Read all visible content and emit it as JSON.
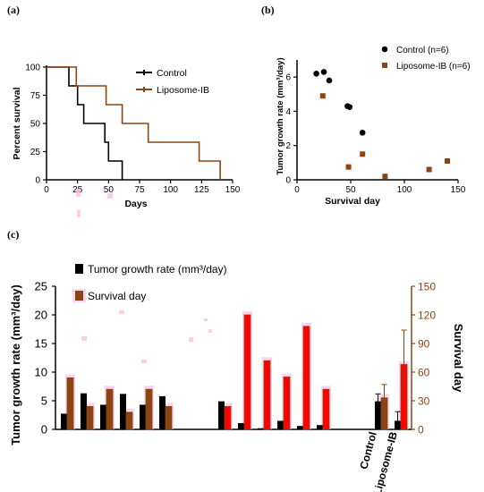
{
  "colors": {
    "control": "#000000",
    "liposome": "#8B4513",
    "liposome_bar": "#FF0000",
    "liposome_bar_edge": "#8B4513",
    "highlight": "#FFB6E1"
  },
  "chart_data": [
    {
      "panel": "(a)",
      "type": "line",
      "step": true,
      "xlabel": "Days",
      "ylabel": "Percent survival",
      "xlim": [
        0,
        150
      ],
      "ylim": [
        0,
        100
      ],
      "xticks": [
        "0",
        "25",
        "50",
        "75",
        "100",
        "125",
        "150"
      ],
      "yticks": [
        "0",
        "25",
        "50",
        "75",
        "100"
      ],
      "legend_position": "top-right",
      "series": [
        {
          "name": "Control",
          "color": "#000000",
          "x": [
            0,
            18,
            18,
            25,
            25,
            30,
            30,
            47,
            47,
            50,
            50,
            61,
            61
          ],
          "y": [
            100,
            100,
            83.3,
            83.3,
            66.7,
            66.7,
            50,
            50,
            33.3,
            33.3,
            16.7,
            16.7,
            0
          ]
        },
        {
          "name": "Liposome-IB",
          "color": "#8B4513",
          "x": [
            0,
            24,
            24,
            48,
            48,
            61,
            61,
            82,
            82,
            123,
            123,
            140,
            140
          ],
          "y": [
            100,
            100,
            83.3,
            83.3,
            66.7,
            66.7,
            50,
            50,
            33.3,
            33.3,
            16.7,
            16.7,
            0
          ]
        }
      ]
    },
    {
      "panel": "(b)",
      "type": "scatter",
      "xlabel": "Survival day",
      "ylabel": "Tumor growth rate (mm³/day)",
      "xlim": [
        0,
        150
      ],
      "ylim": [
        0,
        7
      ],
      "xticks": [
        "0",
        "50",
        "100",
        "150"
      ],
      "yticks": [
        "0",
        "2",
        "4",
        "6"
      ],
      "legend_position": "top-right",
      "series": [
        {
          "name": "Control (n=6)",
          "marker": "circle",
          "color": "#000000",
          "x": [
            18,
            25,
            30,
            47,
            49,
            61
          ],
          "y": [
            6.2,
            6.3,
            5.8,
            4.3,
            4.25,
            2.75
          ]
        },
        {
          "name": "Liposome-IB (n=6)",
          "marker": "square",
          "color": "#8B4513",
          "x": [
            24,
            48,
            61,
            82,
            123,
            140
          ],
          "y": [
            4.9,
            0.75,
            1.5,
            0.2,
            0.6,
            1.1
          ]
        }
      ]
    },
    {
      "panel": "(c)",
      "type": "bar",
      "ylabel": "Tumor growth rate (mm³/day)",
      "ylabel_right": "Survival day",
      "ylim": [
        0,
        25
      ],
      "ylim_right": [
        0,
        150
      ],
      "yticks": [
        "0",
        "5",
        "10",
        "15",
        "20",
        "25"
      ],
      "yticks_right": [
        "0",
        "30",
        "60",
        "90",
        "120",
        "150"
      ],
      "categories": [
        "Control",
        "Liposome-IB"
      ],
      "legend": [
        "Tumor growth rate (mm³/day)",
        "Survival day"
      ],
      "series": [
        {
          "name": "Tumor growth rate (mm³/day)",
          "axis": "left",
          "color": "#000000",
          "control_values": [
            2.75,
            6.3,
            4.3,
            6.2,
            4.3,
            5.8
          ],
          "liposome_values": [
            4.9,
            1.1,
            0.2,
            1.5,
            0.6,
            0.75
          ],
          "mean_values": [
            4.9,
            1.5
          ],
          "error": [
            1.3,
            1.6
          ]
        },
        {
          "name": "Survival day",
          "axis": "right",
          "color": "#8B4513",
          "control_values": [
            54,
            24,
            42,
            18,
            42,
            24
          ],
          "liposome_values": [
            24,
            120,
            72,
            55,
            108,
            42
          ],
          "mean_values": [
            33,
            68
          ],
          "error": [
            14,
            36
          ]
        }
      ]
    }
  ]
}
